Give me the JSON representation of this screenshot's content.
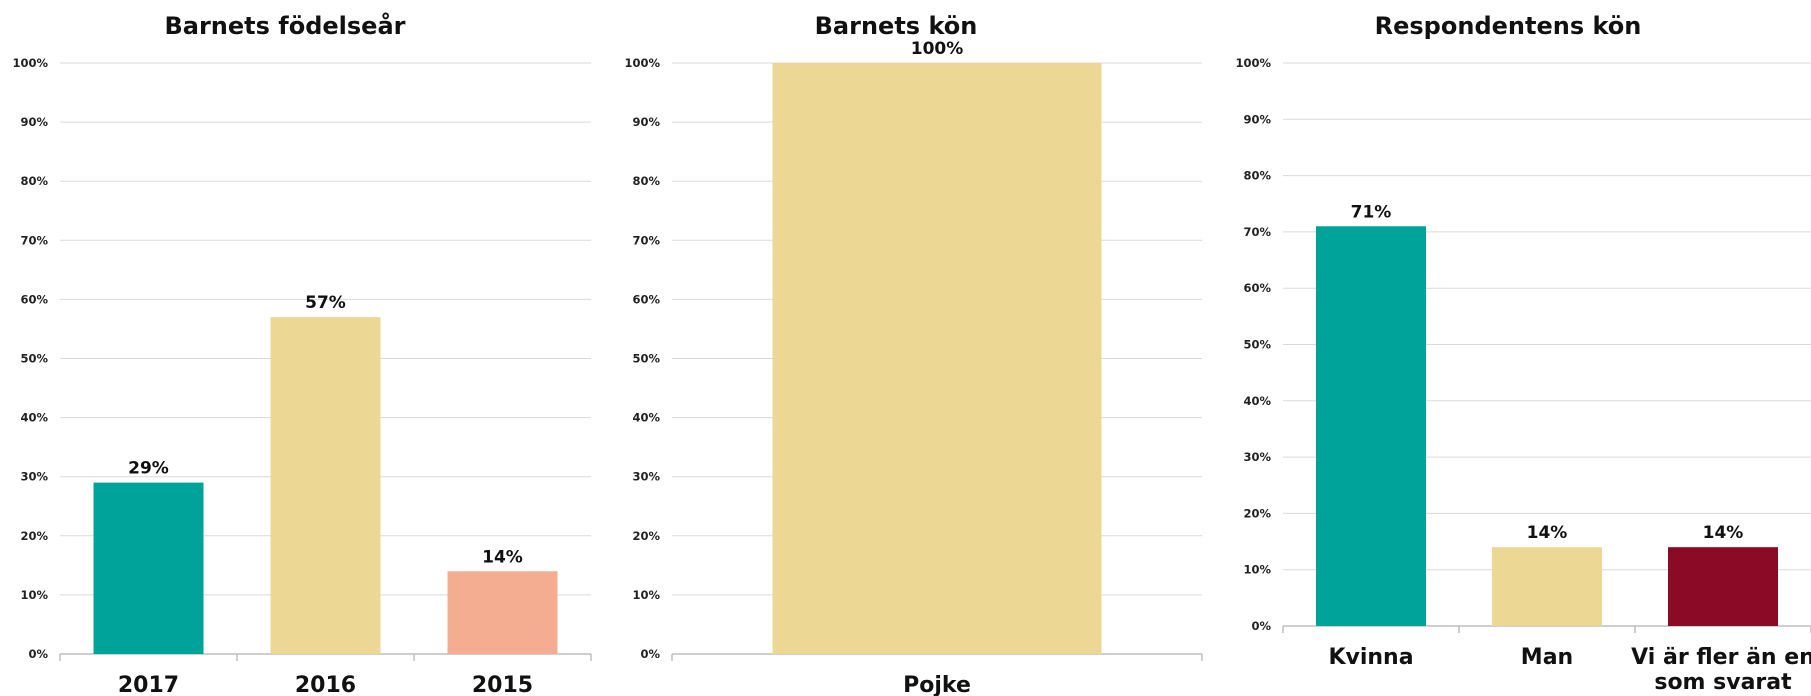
{
  "chart_data": [
    {
      "type": "bar",
      "title": "Barnets födelseår",
      "categories": [
        "2017",
        "2016",
        "2015"
      ],
      "values": [
        29,
        57,
        14
      ],
      "value_labels": [
        "29%",
        "57%",
        "14%"
      ],
      "colors": [
        "#00a39a",
        "#ecd795",
        "#f5ad91"
      ],
      "ylim": [
        0,
        100
      ],
      "yticks": [
        "0%",
        "10%",
        "20%",
        "30%",
        "40%",
        "50%",
        "60%",
        "70%",
        "80%",
        "90%",
        "100%"
      ],
      "grid": true,
      "legend": "none"
    },
    {
      "type": "bar",
      "title": "Barnets kön",
      "categories": [
        "Pojke"
      ],
      "values": [
        100
      ],
      "value_labels": [
        "100%"
      ],
      "colors": [
        "#ecd795"
      ],
      "ylim": [
        0,
        100
      ],
      "yticks": [
        "0%",
        "10%",
        "20%",
        "30%",
        "40%",
        "50%",
        "60%",
        "70%",
        "80%",
        "90%",
        "100%"
      ],
      "grid": true,
      "legend": "none"
    },
    {
      "type": "bar",
      "title": "Respondentens kön",
      "categories": [
        "Kvinna",
        "Man",
        "Vi är fler än en som svarat"
      ],
      "category_lines": [
        [
          "Kvinna"
        ],
        [
          "Man"
        ],
        [
          "Vi är fler än en",
          "som svarat"
        ]
      ],
      "values": [
        71,
        14,
        14
      ],
      "value_labels": [
        "71%",
        "14%",
        "14%"
      ],
      "colors": [
        "#00a39a",
        "#ecd795",
        "#8b0a26"
      ],
      "ylim": [
        0,
        100
      ],
      "yticks": [
        "0%",
        "10%",
        "20%",
        "30%",
        "40%",
        "50%",
        "60%",
        "70%",
        "80%",
        "90%",
        "100%"
      ],
      "grid": true,
      "legend": "none"
    }
  ]
}
